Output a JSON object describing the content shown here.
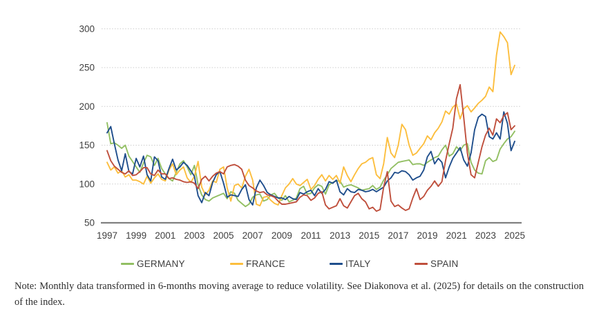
{
  "note": "Note: Monthly data transformed in 6-months moving average to reduce volatility. See Diakonova et al. (2025) for details on the construction of the index.",
  "chart_data": {
    "type": "line",
    "title": "",
    "xlabel": "",
    "ylabel": "",
    "x_start": 1997.0,
    "x_step": 0.25,
    "x_tick_labels": [
      "1997",
      "1999",
      "2001",
      "2003",
      "2005",
      "2007",
      "2009",
      "2011",
      "2013",
      "2015",
      "2017",
      "2019",
      "2021",
      "2023",
      "2025"
    ],
    "y_ticks": [
      50,
      100,
      150,
      200,
      250,
      300
    ],
    "ylim": [
      50,
      310
    ],
    "xlim": [
      1996.6,
      2025.5
    ],
    "grid": "horizontal-dotted",
    "legend_position": "bottom",
    "axis_color": "#808080",
    "grid_color": "#cbcbcb",
    "tick_label_color": "#3f3f3f",
    "series": [
      {
        "name": "GERMANY",
        "color": "#92bf63",
        "values": [
          179,
          152,
          153,
          150,
          146,
          150,
          136,
          129,
          122,
          115,
          127,
          137,
          135,
          124,
          133,
          120,
          113,
          107,
          104,
          115,
          126,
          130,
          122,
          112,
          124,
          99,
          86,
          80,
          78,
          82,
          84,
          86,
          88,
          81,
          90,
          88,
          79,
          75,
          71,
          74,
          83,
          86,
          87,
          78,
          80,
          86,
          88,
          82,
          79,
          85,
          77,
          79,
          82,
          94,
          97,
          87,
          88,
          95,
          99,
          97,
          87,
          99,
          102,
          104,
          104,
          96,
          98,
          99,
          97,
          95,
          92,
          93,
          94,
          98,
          93,
          96,
          105,
          112,
          120,
          124,
          128,
          129,
          130,
          131,
          125,
          126,
          126,
          124,
          128,
          131,
          134,
          136,
          144,
          150,
          136,
          139,
          148,
          143,
          150,
          152,
          128,
          118,
          114,
          113,
          130,
          134,
          129,
          131,
          145,
          152,
          158,
          161,
          168
        ]
      },
      {
        "name": "FRANCE",
        "color": "#fcbe3e",
        "values": [
          128,
          118,
          122,
          114,
          117,
          109,
          112,
          105,
          105,
          103,
          100,
          110,
          101,
          108,
          113,
          106,
          104,
          118,
          126,
          112,
          118,
          122,
          108,
          102,
          110,
          129,
          96,
          86,
          92,
          104,
          102,
          119,
          122,
          95,
          78,
          98,
          100,
          95,
          110,
          119,
          105,
          74,
          72,
          83,
          84,
          79,
          75,
          73,
          85,
          95,
          100,
          107,
          100,
          98,
          102,
          106,
          93,
          98,
          106,
          112,
          104,
          111,
          106,
          111,
          101,
          122,
          111,
          103,
          112,
          120,
          126,
          128,
          132,
          134,
          112,
          107,
          126,
          160,
          140,
          134,
          150,
          177,
          170,
          150,
          137,
          140,
          146,
          152,
          162,
          157,
          166,
          172,
          180,
          194,
          190,
          199,
          203,
          184,
          197,
          201,
          193,
          198,
          204,
          208,
          213,
          225,
          219,
          266,
          296,
          290,
          282,
          241,
          253
        ]
      },
      {
        "name": "ITALY",
        "color": "#1f4e8c",
        "values": [
          166,
          174,
          152,
          131,
          117,
          139,
          116,
          113,
          133,
          122,
          136,
          112,
          104,
          135,
          130,
          109,
          106,
          120,
          132,
          118,
          122,
          128,
          124,
          117,
          110,
          85,
          76,
          89,
          85,
          102,
          112,
          116,
          101,
          83,
          86,
          85,
          84,
          93,
          99,
          80,
          73,
          95,
          105,
          98,
          89,
          86,
          84,
          82,
          82,
          80,
          84,
          81,
          80,
          89,
          87,
          90,
          92,
          85,
          94,
          88,
          93,
          103,
          101,
          105,
          90,
          86,
          94,
          90,
          89,
          93,
          92,
          90,
          91,
          93,
          90,
          93,
          96,
          104,
          108,
          115,
          114,
          117,
          116,
          112,
          105,
          108,
          110,
          118,
          135,
          142,
          126,
          133,
          128,
          108,
          122,
          133,
          140,
          147,
          131,
          123,
          140,
          170,
          186,
          190,
          187,
          161,
          158,
          166,
          158,
          193,
          178,
          143,
          155
        ]
      },
      {
        "name": "SPAIN",
        "color": "#bf4f3c",
        "values": [
          143,
          130,
          123,
          119,
          115,
          113,
          117,
          111,
          112,
          116,
          121,
          121,
          113,
          111,
          118,
          113,
          113,
          107,
          108,
          106,
          105,
          103,
          102,
          103,
          101,
          94,
          106,
          110,
          104,
          110,
          114,
          116,
          113,
          122,
          124,
          125,
          123,
          119,
          105,
          98,
          95,
          91,
          89,
          90,
          86,
          85,
          83,
          78,
          74,
          74,
          75,
          76,
          77,
          83,
          86,
          85,
          79,
          82,
          88,
          90,
          73,
          68,
          70,
          72,
          81,
          72,
          69,
          77,
          85,
          88,
          81,
          77,
          68,
          70,
          65,
          67,
          96,
          116,
          78,
          71,
          73,
          69,
          66,
          68,
          82,
          94,
          80,
          84,
          92,
          97,
          104,
          97,
          103,
          130,
          152,
          172,
          210,
          228,
          186,
          140,
          112,
          108,
          128,
          148,
          163,
          172,
          163,
          184,
          179,
          188,
          192,
          170,
          175
        ]
      }
    ]
  },
  "legend": {
    "items": [
      "GERMANY",
      "FRANCE",
      "ITALY",
      "SPAIN"
    ]
  }
}
